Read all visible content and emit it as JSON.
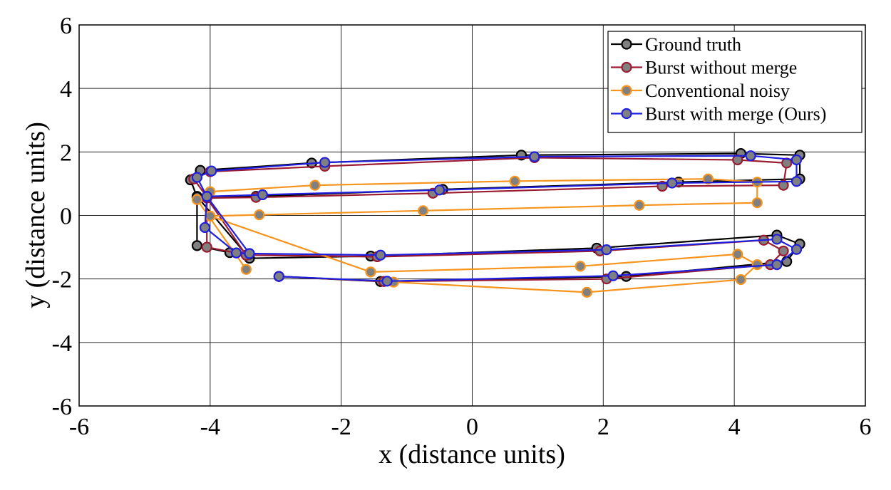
{
  "chart_data": {
    "type": "line",
    "title": "",
    "xlabel": "x (distance units)",
    "ylabel": "y (distance units)",
    "xlim": [
      -6,
      6
    ],
    "ylim": [
      -6,
      6
    ],
    "xticks": [
      -6,
      -4,
      -2,
      0,
      2,
      4,
      6
    ],
    "yticks": [
      -6,
      -4,
      -2,
      0,
      2,
      4,
      6
    ],
    "grid": true,
    "legend_position": "top-right",
    "series": [
      {
        "name": "Ground truth",
        "color": "#000000",
        "marker_fill": "#808080",
        "points": [
          [
            -2.95,
            -1.92
          ],
          [
            -1.4,
            -2.08
          ],
          [
            2.35,
            -1.92
          ],
          [
            4.8,
            -1.45
          ],
          [
            5.0,
            -0.9
          ],
          [
            4.65,
            -0.62
          ],
          [
            1.9,
            -1.03
          ],
          [
            -1.55,
            -1.28
          ],
          [
            -3.4,
            -1.35
          ],
          [
            -4.2,
            0.6
          ],
          [
            -3.3,
            0.6
          ],
          [
            -0.45,
            0.82
          ],
          [
            3.15,
            1.05
          ],
          [
            5.0,
            1.15
          ],
          [
            5.0,
            1.9
          ],
          [
            4.1,
            1.95
          ],
          [
            0.75,
            1.9
          ],
          [
            -2.45,
            1.65
          ],
          [
            -4.15,
            1.42
          ],
          [
            -4.3,
            1.12
          ],
          [
            -4.2,
            0.58
          ],
          [
            -4.2,
            -0.95
          ],
          [
            -3.7,
            -1.17
          ],
          [
            -3.4,
            -1.22
          ]
        ]
      },
      {
        "name": "Burst without merge",
        "color": "#9b1b30",
        "marker_fill": "#808080",
        "points": [
          [
            -2.95,
            -1.92
          ],
          [
            -1.35,
            -2.08
          ],
          [
            2.05,
            -2.0
          ],
          [
            4.55,
            -1.55
          ],
          [
            4.75,
            -1.12
          ],
          [
            4.45,
            -0.78
          ],
          [
            1.95,
            -1.12
          ],
          [
            -1.45,
            -1.3
          ],
          [
            -3.45,
            -1.25
          ],
          [
            -4.05,
            0.55
          ],
          [
            -3.3,
            0.57
          ],
          [
            -0.6,
            0.7
          ],
          [
            2.9,
            0.92
          ],
          [
            4.75,
            0.95
          ],
          [
            4.8,
            1.65
          ],
          [
            4.05,
            1.75
          ],
          [
            0.95,
            1.82
          ],
          [
            -2.25,
            1.55
          ],
          [
            -4.0,
            1.38
          ],
          [
            -4.25,
            1.15
          ],
          [
            -4.05,
            0.58
          ],
          [
            -4.05,
            -1.0
          ],
          [
            -3.6,
            -1.18
          ],
          [
            -3.45,
            -1.25
          ]
        ]
      },
      {
        "name": "Conventional noisy",
        "color": "#f7941d",
        "marker_fill": "#808080",
        "points": [
          [
            -1.2,
            -2.1
          ],
          [
            1.75,
            -2.42
          ],
          [
            4.1,
            -2.02
          ],
          [
            4.35,
            -1.55
          ],
          [
            4.05,
            -1.22
          ],
          [
            1.65,
            -1.6
          ],
          [
            -1.55,
            -1.78
          ],
          [
            -4.0,
            -0.02
          ],
          [
            -3.25,
            0.02
          ],
          [
            -0.75,
            0.15
          ],
          [
            2.55,
            0.32
          ],
          [
            4.35,
            0.4
          ],
          [
            4.35,
            1.05
          ],
          [
            3.6,
            1.15
          ],
          [
            0.65,
            1.08
          ],
          [
            -2.4,
            0.95
          ],
          [
            -4.0,
            0.75
          ],
          [
            -4.2,
            0.5
          ],
          [
            -3.45,
            -1.7
          ]
        ]
      },
      {
        "name": "Burst with merge (Ours)",
        "color": "#1f1fe0",
        "marker_fill": "#808080",
        "points": [
          [
            -2.95,
            -1.92
          ],
          [
            -1.3,
            -2.07
          ],
          [
            2.15,
            -1.9
          ],
          [
            4.65,
            -1.55
          ],
          [
            4.95,
            -1.07
          ],
          [
            4.65,
            -0.75
          ],
          [
            2.05,
            -1.08
          ],
          [
            -1.4,
            -1.25
          ],
          [
            -3.4,
            -1.2
          ],
          [
            -4.05,
            0.6
          ],
          [
            -3.2,
            0.65
          ],
          [
            -0.5,
            0.8
          ],
          [
            3.05,
            1.02
          ],
          [
            4.95,
            1.07
          ],
          [
            4.95,
            1.75
          ],
          [
            4.25,
            1.88
          ],
          [
            0.95,
            1.85
          ],
          [
            -2.25,
            1.67
          ],
          [
            -3.98,
            1.4
          ],
          [
            -4.2,
            1.2
          ],
          [
            -4.05,
            0.6
          ],
          [
            -4.08,
            -0.38
          ],
          [
            -3.6,
            -1.18
          ],
          [
            -3.4,
            -1.2
          ]
        ]
      }
    ]
  }
}
